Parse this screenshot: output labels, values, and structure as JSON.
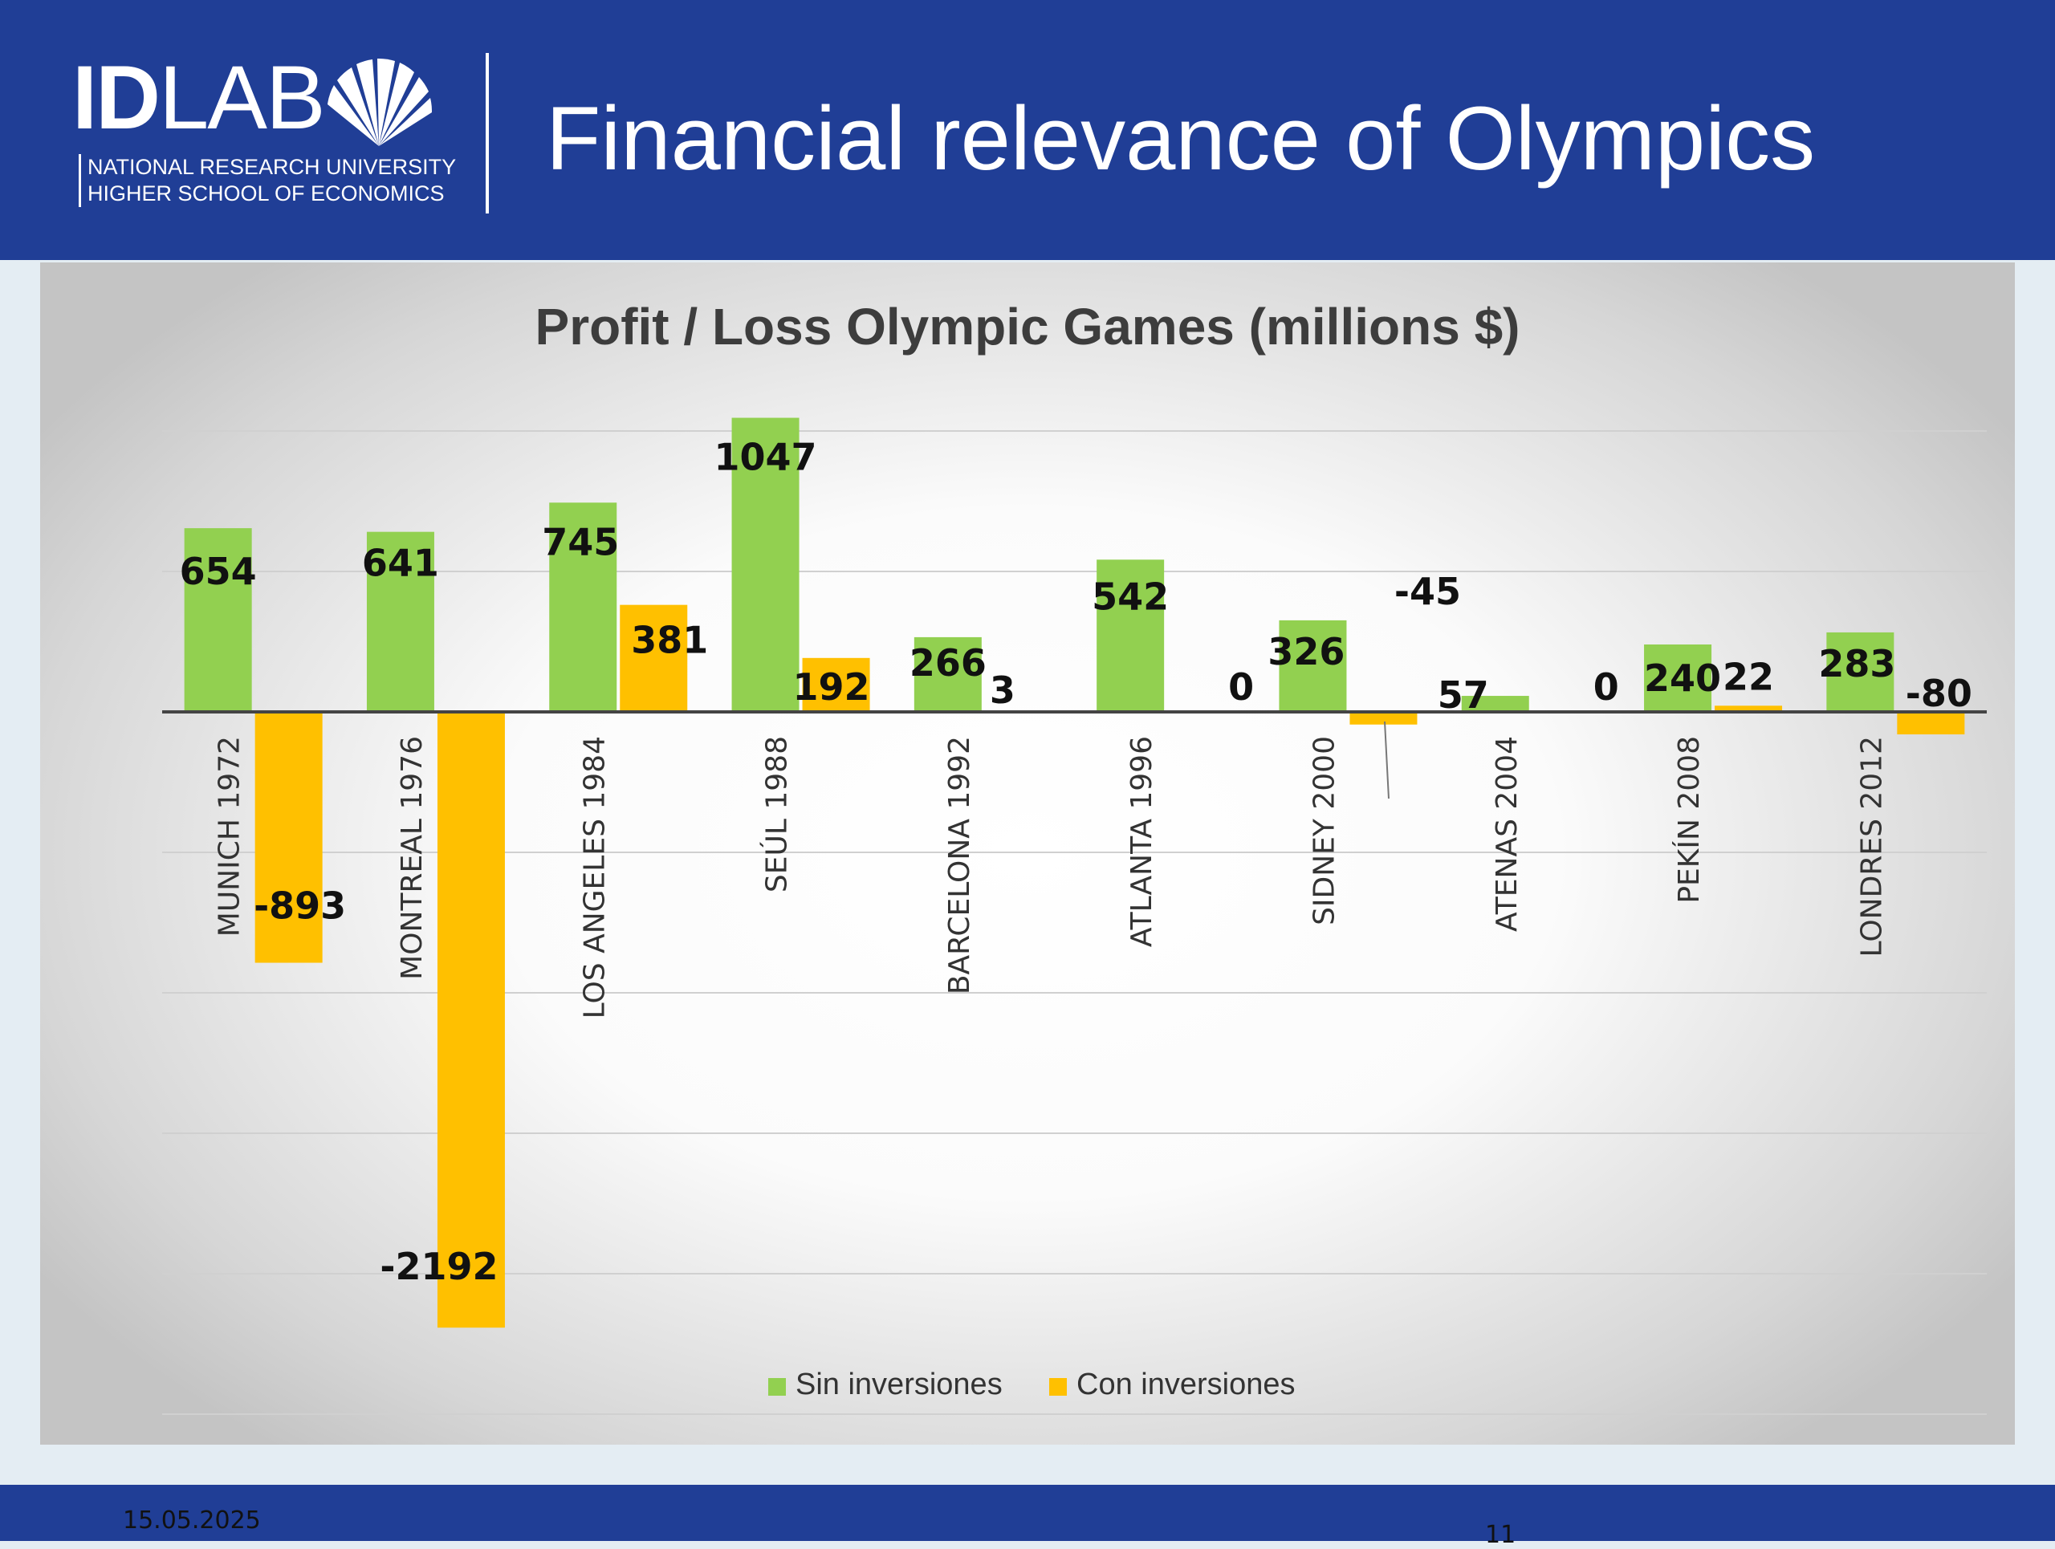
{
  "header": {
    "logo_bold": "ID",
    "logo_light": "LAB",
    "logo_line1": "NATIONAL RESEARCH UNIVERSITY",
    "logo_line2": "HIGHER SCHOOL OF ECONOMICS",
    "title": "Financial relevance of Olympics",
    "background_color": "#203e96",
    "logo_icon": "shell-icon"
  },
  "chart_data": {
    "type": "bar",
    "title": "Profit / Loss Olympic Games (millions $)",
    "categories": [
      "MUNICH 1972",
      "MONTREAL 1976",
      "LOS ANGELES 1984",
      "SEÚL 1988",
      "BARCELONA 1992",
      "ATLANTA 1996",
      "SIDNEY 2000",
      "ATENAS 2004",
      "PEKÍN 2008",
      "LONDRES 2012"
    ],
    "series": [
      {
        "name": "Sin inversiones",
        "color": "#92d050",
        "values": [
          654,
          641,
          745,
          1047,
          266,
          542,
          326,
          57,
          240,
          283
        ],
        "labels": [
          "654",
          "641",
          "745",
          "1047",
          "266",
          "542",
          "326",
          "57",
          "240",
          "283"
        ]
      },
      {
        "name": "Con inversiones",
        "color": "#ffc000",
        "values": [
          -893,
          -2192,
          381,
          192,
          3,
          0,
          -45,
          0,
          22,
          -80
        ],
        "labels": [
          "-893",
          "-2192",
          "381",
          "192",
          "3",
          "0",
          "-45",
          "0",
          "22",
          "-80"
        ]
      }
    ],
    "xlabel": "",
    "ylabel": "",
    "ylim": [
      -2500,
      1000
    ],
    "gridlines": true,
    "legend_position": "bottom-center"
  },
  "footer": {
    "date": "15.05.2025",
    "page": "11",
    "background_color": "#203e96"
  }
}
